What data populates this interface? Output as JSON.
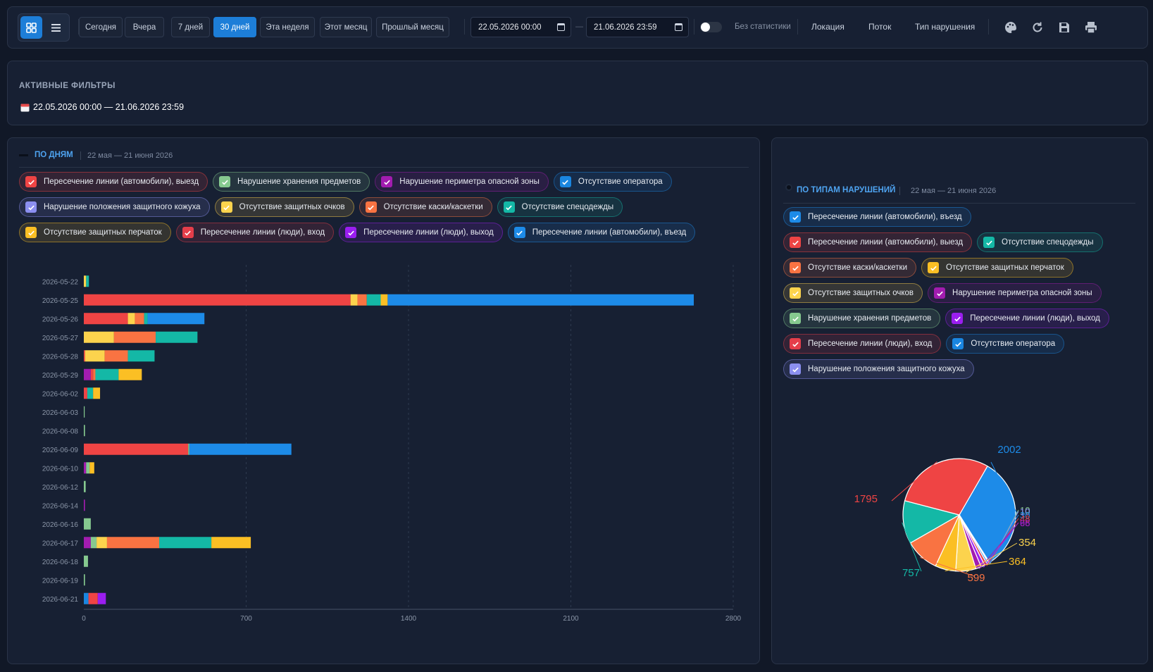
{
  "toolbar": {
    "views": [
      {
        "icon": "grid-icon",
        "active": true
      },
      {
        "icon": "list-icon",
        "active": false
      }
    ],
    "presets": [
      {
        "label": "Сегодня",
        "active": false
      },
      {
        "label": "Вчера",
        "active": false
      },
      {
        "label": "7 дней",
        "active": false
      },
      {
        "label": "30 дней",
        "active": true
      },
      {
        "label": "Эта неделя",
        "active": false
      },
      {
        "label": "Этот месяц",
        "active": false
      },
      {
        "label": "Прошлый месяц",
        "active": false
      }
    ],
    "date_from": "22.05.2026 00:00",
    "date_to": "21.06.2026 23:59",
    "date_sep": "—",
    "toggle_label": "Без статистики",
    "toggle_on": false,
    "menus": [
      "Локация",
      "Поток",
      "Тип нарушения"
    ],
    "actions": [
      "palette-icon",
      "refresh-icon",
      "save-icon",
      "print-icon"
    ]
  },
  "filters": {
    "title": "АКТИВНЫЕ ФИЛЬТРЫ",
    "date_range": "22.05.2026 00:00 — 21.06.2026 23:59"
  },
  "colors": {
    "exit_cars": "#ef4444",
    "storage": "#86c98f",
    "perimeter": "#a21caf",
    "operator": "#1a86e0",
    "casing": "#8b8ff0",
    "goggles": "#fcd34d",
    "helmet": "#f97342",
    "clothing": "#14b8a6",
    "gloves": "#fbbf24",
    "entry_people": "#e53e4a",
    "exit_people": "#9b1ef0",
    "entry_cars": "#1d8be8"
  },
  "days_panel": {
    "title": "ПО ДНЯМ",
    "subtitle": "22 мая — 21 июня 2026",
    "legend": [
      {
        "key": "exit_cars",
        "label": "Пересечение линии (автомобили), выезд"
      },
      {
        "key": "storage",
        "label": "Нарушение хранения предметов"
      },
      {
        "key": "perimeter",
        "label": "Нарушение периметра опасной зоны"
      },
      {
        "key": "operator",
        "label": "Отсутствие оператора"
      },
      {
        "key": "casing",
        "label": "Нарушение положения защитного кожуха"
      },
      {
        "key": "goggles",
        "label": "Отсутствие защитных очков"
      },
      {
        "key": "helmet",
        "label": "Отсутствие каски/кaскетки"
      },
      {
        "key": "clothing",
        "label": "Отсутствие спецодежды"
      },
      {
        "key": "gloves",
        "label": "Отсутствие защитных перчаток"
      },
      {
        "key": "entry_people",
        "label": "Пересечение линии (люди), вход"
      },
      {
        "key": "exit_people",
        "label": "Пересечение линии (люди), выход"
      },
      {
        "key": "entry_cars",
        "label": "Пересечение линии (автомобили), въезд"
      }
    ]
  },
  "types_panel": {
    "title": "ПО ТИПАМ НАРУШЕНИЙ",
    "subtitle": "22 мая — 21 июня 2026",
    "legend": [
      {
        "key": "entry_cars",
        "label": "Пересечение линии (автомобили), въезд"
      },
      {
        "key": "exit_cars",
        "label": "Пересечение линии (автомобили), выезд"
      },
      {
        "key": "clothing",
        "label": "Отсутствие спецодежды"
      },
      {
        "key": "helmet",
        "label": "Отсутствие каски/кaскетки"
      },
      {
        "key": "gloves",
        "label": "Отсутствие защитных перчаток"
      },
      {
        "key": "goggles",
        "label": "Отсутствие защитных очков"
      },
      {
        "key": "perimeter",
        "label": "Нарушение периметра опасной зоны"
      },
      {
        "key": "storage",
        "label": "Нарушение хранения предметов"
      },
      {
        "key": "exit_people",
        "label": "Пересечение линии (люди), выход"
      },
      {
        "key": "entry_people",
        "label": "Пересечение линии (люди), вход"
      },
      {
        "key": "operator",
        "label": "Отсутствие оператора"
      },
      {
        "key": "casing",
        "label": "Нарушение положения защитного кожуха"
      }
    ]
  },
  "chart_data": [
    {
      "type": "bar",
      "orientation": "horizontal",
      "stacked": true,
      "categories": [
        "2026-05-22",
        "2026-05-25",
        "2026-05-26",
        "2026-05-27",
        "2026-05-28",
        "2026-05-29",
        "2026-06-02",
        "2026-06-03",
        "2026-06-08",
        "2026-06-09",
        "2026-06-10",
        "2026-06-12",
        "2026-06-14",
        "2026-06-16",
        "2026-06-17",
        "2026-06-18",
        "2026-06-19",
        "2026-06-21"
      ],
      "xlim": [
        0,
        2800
      ],
      "xticks": [
        0,
        700,
        1400,
        2100,
        2800
      ],
      "series": [
        {
          "key": "operator",
          "values": [
            0,
            0,
            0,
            0,
            0,
            0,
            0,
            0,
            0,
            0,
            0,
            0,
            0,
            0,
            0,
            0,
            0,
            20
          ]
        },
        {
          "key": "perimeter",
          "values": [
            0,
            0,
            0,
            0,
            0,
            30,
            0,
            0,
            0,
            0,
            10,
            0,
            5,
            0,
            30,
            0,
            0,
            0
          ]
        },
        {
          "key": "exit_cars",
          "values": [
            0,
            1150,
            190,
            0,
            5,
            10,
            15,
            0,
            0,
            450,
            0,
            0,
            0,
            0,
            0,
            0,
            0,
            40
          ]
        },
        {
          "key": "storage",
          "values": [
            0,
            0,
            0,
            0,
            0,
            0,
            0,
            3,
            5,
            5,
            15,
            8,
            0,
            30,
            25,
            18,
            5,
            0
          ]
        },
        {
          "key": "goggles",
          "values": [
            10,
            30,
            30,
            130,
            85,
            0,
            0,
            0,
            0,
            0,
            0,
            0,
            0,
            0,
            45,
            0,
            0,
            0
          ]
        },
        {
          "key": "helmet",
          "values": [
            0,
            40,
            40,
            180,
            100,
            10,
            0,
            0,
            0,
            0,
            0,
            0,
            0,
            0,
            225,
            0,
            0,
            0
          ]
        },
        {
          "key": "clothing",
          "values": [
            12,
            60,
            15,
            180,
            115,
            100,
            25,
            0,
            0,
            0,
            0,
            0,
            0,
            0,
            225,
            0,
            0,
            0
          ]
        },
        {
          "key": "gloves",
          "values": [
            0,
            30,
            0,
            0,
            0,
            100,
            30,
            0,
            0,
            0,
            20,
            0,
            0,
            0,
            170,
            0,
            0,
            0
          ]
        },
        {
          "key": "entry_cars",
          "values": [
            0,
            1320,
            245,
            0,
            0,
            0,
            0,
            0,
            0,
            440,
            0,
            0,
            0,
            0,
            0,
            0,
            0,
            0
          ]
        },
        {
          "key": "exit_people",
          "values": [
            0,
            0,
            0,
            0,
            0,
            0,
            0,
            0,
            0,
            0,
            0,
            0,
            0,
            0,
            0,
            0,
            0,
            35
          ]
        }
      ]
    },
    {
      "type": "pie",
      "slices": [
        {
          "key": "entry_cars",
          "value": 2002,
          "label": "2002"
        },
        {
          "key": "storage",
          "value": 10,
          "label": "10"
        },
        {
          "key": "casing",
          "value": 10,
          "label": "10"
        },
        {
          "key": "operator",
          "value": 30,
          "label": "30"
        },
        {
          "key": "entry_people",
          "value": 48,
          "label": "48"
        },
        {
          "key": "exit_people",
          "value": 66,
          "label": "66"
        },
        {
          "key": "perimeter",
          "value": 98,
          "label": "98"
        },
        {
          "key": "goggles",
          "value": 354,
          "label": "354"
        },
        {
          "key": "gloves",
          "value": 364,
          "label": "364"
        },
        {
          "key": "helmet",
          "value": 599,
          "label": "599"
        },
        {
          "key": "clothing",
          "value": 757,
          "label": "757"
        },
        {
          "key": "exit_cars",
          "value": 1795,
          "label": "1795"
        }
      ]
    }
  ]
}
